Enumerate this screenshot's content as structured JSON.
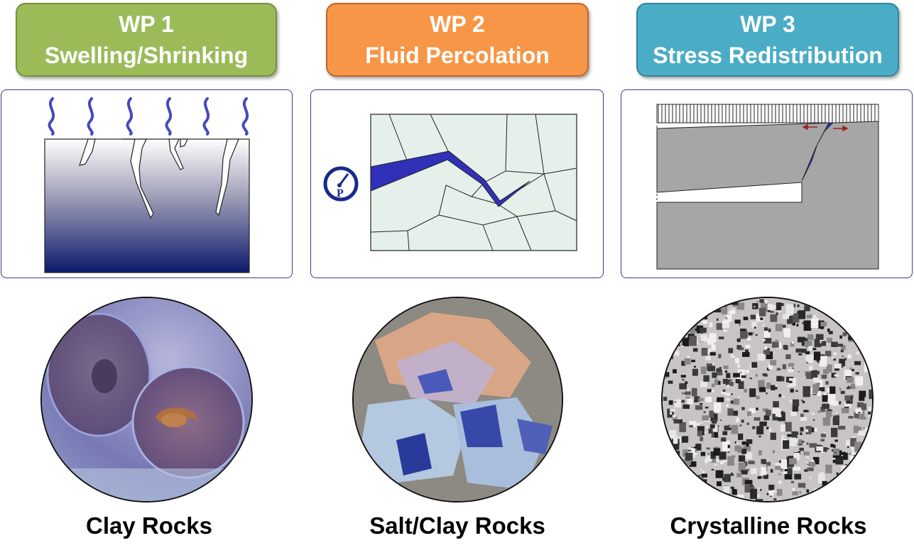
{
  "panels": [
    {
      "wp_label": "WP 1",
      "title": "Swelling/Shrinking",
      "header_color": "#9bbb59",
      "header_border": "#76923c",
      "rock_caption": "Clay Rocks"
    },
    {
      "wp_label": "WP 2",
      "title": "Fluid Percolation",
      "header_color": "#f79646",
      "header_border": "#c0652a",
      "rock_caption": "Salt/Clay Rocks"
    },
    {
      "wp_label": "WP 3",
      "title": "Stress Redistribution",
      "header_color": "#4bacc6",
      "header_border": "#31859c",
      "rock_caption": "Crystalline Rocks"
    }
  ],
  "gauge_symbol": "P"
}
